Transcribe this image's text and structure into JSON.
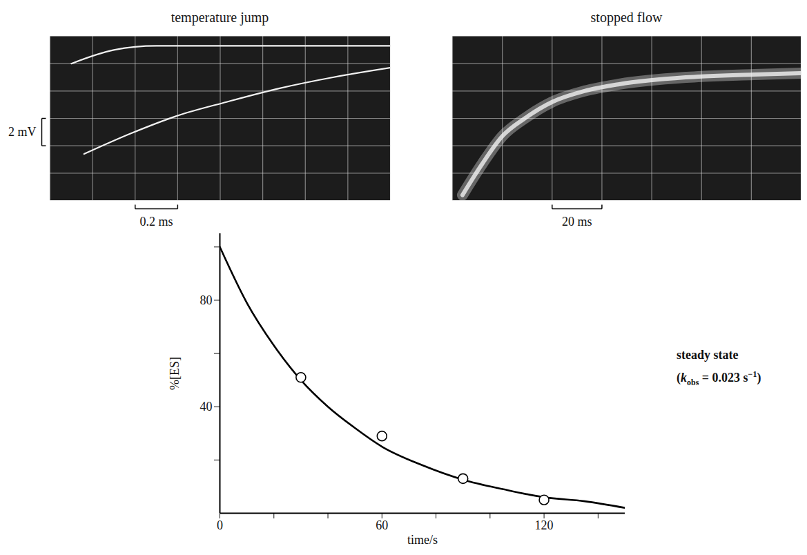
{
  "chart_data": [
    {
      "type": "oscilloscope",
      "title": "temperature jump",
      "xlim": [
        0,
        1.6
      ],
      "ylim": [
        0,
        12
      ],
      "xticks": [
        0,
        0.2,
        0.4,
        0.6,
        0.8,
        1.0,
        1.2,
        1.4,
        1.6
      ],
      "yticks": [
        0,
        2,
        4,
        6,
        8,
        10,
        12
      ],
      "grid": true,
      "tick_labels": false,
      "series": [
        {
          "color": "#f2f2f2",
          "x": [
            0.16,
            0.38,
            0.6,
            0.83,
            1.08,
            1.33,
            1.6
          ],
          "values": [
            3.4,
            4.9,
            6.2,
            7.2,
            8.2,
            9.0,
            9.7
          ]
        },
        {
          "color": "#f2f2f2",
          "x": [
            0.1,
            0.3,
            0.5,
            1.0,
            1.6
          ],
          "values": [
            10.0,
            11.0,
            11.3,
            11.3,
            11.3
          ]
        }
      ],
      "scale_bars": [
        {
          "axis": "y",
          "value": 2,
          "label": "2 mV"
        },
        {
          "axis": "x",
          "value": 0.2,
          "label": "0.2 ms"
        }
      ]
    },
    {
      "type": "oscilloscope",
      "title": "stopped flow",
      "xlim": [
        0,
        140
      ],
      "ylim": [
        0,
        12
      ],
      "xticks": [
        0,
        20,
        40,
        60,
        80,
        100,
        120,
        140
      ],
      "yticks": [
        0,
        2,
        4,
        6,
        8,
        10,
        12
      ],
      "grid": true,
      "tick_labels": false,
      "series": [
        {
          "color": "#f2f2f2",
          "x": [
            4,
            12,
            20,
            29,
            40,
            53,
            67,
            94,
            121,
            140
          ],
          "values": [
            0.4,
            2.7,
            4.7,
            6.0,
            7.2,
            8.0,
            8.5,
            9.0,
            9.2,
            9.3
          ]
        }
      ],
      "scale_bars": [
        {
          "axis": "x",
          "value": 20,
          "label": "20 ms"
        }
      ]
    },
    {
      "type": "line",
      "xlabel": "time/s",
      "ylabel": "%[ES]",
      "xlim": [
        0,
        150
      ],
      "ylim": [
        0,
        105
      ],
      "xticks": [
        0,
        60,
        120
      ],
      "yticks": [
        40,
        80
      ],
      "x_minor_ticks": [
        20,
        40,
        80,
        100,
        140
      ],
      "y_minor_ticks": [
        20,
        60,
        100
      ],
      "series": [
        {
          "type": "line",
          "color": "#000000",
          "x": [
            0,
            10,
            20,
            30,
            40,
            50,
            60,
            75,
            90,
            105,
            120,
            135,
            150
          ],
          "values": [
            100,
            79,
            63,
            50,
            40,
            32,
            25,
            18,
            12.6,
            9,
            6,
            4.5,
            2
          ]
        },
        {
          "type": "scatter",
          "marker": "circle",
          "color": "#000000",
          "x": [
            30,
            60,
            90,
            120
          ],
          "values": [
            51,
            29,
            13,
            5
          ]
        }
      ],
      "annotation": {
        "text": "steady state",
        "open": "(",
        "symbol": "k",
        "subscript": "obs",
        "rest": " = 0.023 s",
        "superscript": "−1",
        "close": ")"
      }
    }
  ]
}
